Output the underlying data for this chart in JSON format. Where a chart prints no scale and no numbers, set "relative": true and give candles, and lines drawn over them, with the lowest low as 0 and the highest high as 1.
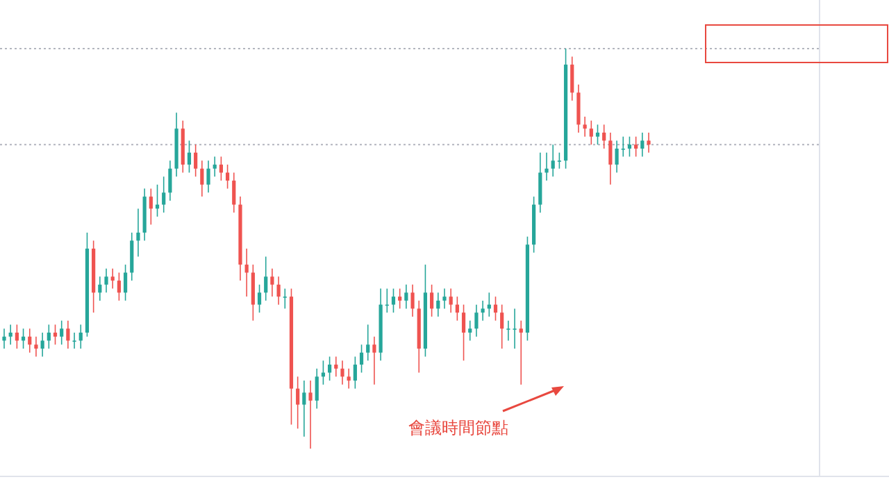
{
  "chart_data": {
    "type": "candlestick",
    "relative": true,
    "grid": false,
    "categories": [
      null,
      null,
      null,
      null,
      null,
      null,
      null,
      null,
      null,
      null,
      null,
      null,
      null,
      null,
      null,
      null,
      null,
      null,
      null,
      null,
      null,
      null,
      null,
      null,
      null,
      null,
      null,
      null,
      null,
      null,
      null,
      null,
      null,
      null,
      null,
      null,
      null,
      null,
      null,
      null,
      null,
      null,
      null,
      null,
      null,
      null,
      null,
      null,
      null,
      null,
      null,
      null,
      null,
      null,
      null,
      null,
      null,
      null,
      null,
      null,
      null,
      null,
      null,
      null,
      null,
      null,
      null,
      null,
      null,
      null,
      null,
      null,
      null,
      null,
      null,
      null,
      null,
      null,
      null,
      null,
      null,
      null,
      null,
      null,
      null,
      null,
      null,
      null,
      null,
      null,
      null,
      null,
      null,
      null,
      null,
      null,
      null,
      null,
      null,
      null,
      null,
      null
    ],
    "series": [
      {
        "colors": [
          "#26a69a",
          "#26a69a",
          "#ef5350",
          "#26a69a",
          "#ef5350",
          "#ef5350",
          "#26a69a",
          "#26a69a",
          "#ef5350",
          "#26a69a",
          "#ef5350",
          "#26a69a",
          "#26a69a",
          "#26a69a",
          "#ef5350",
          "#26a69a",
          "#26a69a",
          "#ef5350",
          "#ef5350",
          "#26a69a",
          "#26a69a",
          "#26a69a",
          "#26a69a",
          "#ef5350",
          "#26a69a",
          "#26a69a",
          "#26a69a",
          "#26a69a",
          "#ef5350",
          "#26a69a",
          "#ef5350",
          "#ef5350",
          "#26a69a",
          "#26a69a",
          "#ef5350",
          "#ef5350",
          "#ef5350",
          "#ef5350",
          "#ef5350",
          "#ef5350",
          "#26a69a",
          "#26a69a",
          "#ef5350",
          "#ef5350",
          "#26a69a",
          "#ef5350",
          "#ef5350",
          "#26a69a",
          "#ef5350",
          "#26a69a",
          "#26a69a",
          "#26a69a",
          "#ef5350",
          "#ef5350",
          "#ef5350",
          "#26a69a",
          "#26a69a",
          "#26a69a",
          "#ef5350",
          "#26a69a",
          "#26a69a",
          "#26a69a",
          "#ef5350",
          "#26a69a",
          "#ef5350",
          "#ef5350",
          "#26a69a",
          "#ef5350",
          "#26a69a",
          "#26a69a",
          "#ef5350",
          "#ef5350",
          "#ef5350",
          "#26a69a",
          "#26a69a",
          "#26a69a",
          "#26a69a",
          "#ef5350",
          "#ef5350",
          "#26a69a",
          "#26a69a",
          "#ef5350",
          "#26a69a",
          "#26a69a",
          "#26a69a",
          "#26a69a",
          "#26a69a",
          "#26a69a",
          "#26a69a",
          "#ef5350",
          "#ef5350",
          "#ef5350",
          "#ef5350",
          "#26a69a",
          "#ef5350",
          "#ef5350",
          "#26a69a",
          "#26a69a",
          "#26a69a",
          "#ef5350",
          "#26a69a",
          "#ef5350"
        ],
        "ohlc": [
          [
            0.27,
            0.3,
            0.25,
            0.28
          ],
          [
            0.28,
            0.31,
            0.26,
            0.29
          ],
          [
            0.29,
            0.31,
            0.25,
            0.27
          ],
          [
            0.27,
            0.3,
            0.25,
            0.28
          ],
          [
            0.28,
            0.3,
            0.24,
            0.26
          ],
          [
            0.26,
            0.28,
            0.23,
            0.25
          ],
          [
            0.25,
            0.29,
            0.23,
            0.27
          ],
          [
            0.27,
            0.31,
            0.25,
            0.29
          ],
          [
            0.29,
            0.31,
            0.26,
            0.28
          ],
          [
            0.28,
            0.32,
            0.26,
            0.3
          ],
          [
            0.3,
            0.32,
            0.25,
            0.27
          ],
          [
            0.27,
            0.29,
            0.25,
            0.27
          ],
          [
            0.27,
            0.31,
            0.25,
            0.29
          ],
          [
            0.29,
            0.54,
            0.28,
            0.5
          ],
          [
            0.5,
            0.52,
            0.34,
            0.39
          ],
          [
            0.39,
            0.43,
            0.37,
            0.41
          ],
          [
            0.41,
            0.45,
            0.39,
            0.43
          ],
          [
            0.43,
            0.45,
            0.4,
            0.42
          ],
          [
            0.42,
            0.44,
            0.37,
            0.39
          ],
          [
            0.39,
            0.46,
            0.37,
            0.44
          ],
          [
            0.44,
            0.54,
            0.42,
            0.52
          ],
          [
            0.52,
            0.6,
            0.48,
            0.54
          ],
          [
            0.54,
            0.65,
            0.52,
            0.63
          ],
          [
            0.63,
            0.65,
            0.56,
            0.6
          ],
          [
            0.6,
            0.66,
            0.58,
            0.61
          ],
          [
            0.61,
            0.68,
            0.59,
            0.64
          ],
          [
            0.64,
            0.72,
            0.62,
            0.7
          ],
          [
            0.7,
            0.84,
            0.68,
            0.8
          ],
          [
            0.8,
            0.82,
            0.69,
            0.71
          ],
          [
            0.71,
            0.77,
            0.69,
            0.74
          ],
          [
            0.74,
            0.76,
            0.68,
            0.7
          ],
          [
            0.7,
            0.72,
            0.63,
            0.66
          ],
          [
            0.66,
            0.72,
            0.64,
            0.7
          ],
          [
            0.7,
            0.73,
            0.68,
            0.71
          ],
          [
            0.71,
            0.73,
            0.67,
            0.69
          ],
          [
            0.69,
            0.71,
            0.65,
            0.67
          ],
          [
            0.67,
            0.69,
            0.59,
            0.61
          ],
          [
            0.61,
            0.63,
            0.42,
            0.46
          ],
          [
            0.46,
            0.5,
            0.38,
            0.44
          ],
          [
            0.44,
            0.46,
            0.32,
            0.36
          ],
          [
            0.36,
            0.41,
            0.34,
            0.39
          ],
          [
            0.39,
            0.48,
            0.37,
            0.43
          ],
          [
            0.43,
            0.45,
            0.38,
            0.41
          ],
          [
            0.41,
            0.43,
            0.36,
            0.38
          ],
          [
            0.38,
            0.4,
            0.35,
            0.38
          ],
          [
            0.38,
            0.4,
            0.06,
            0.15
          ],
          [
            0.15,
            0.18,
            0.05,
            0.11
          ],
          [
            0.11,
            0.17,
            0.03,
            0.14
          ],
          [
            0.14,
            0.17,
            0,
            0.12
          ],
          [
            0.12,
            0.2,
            0.1,
            0.18
          ],
          [
            0.18,
            0.22,
            0.16,
            0.19
          ],
          [
            0.19,
            0.23,
            0.17,
            0.21
          ],
          [
            0.21,
            0.23,
            0.18,
            0.2
          ],
          [
            0.2,
            0.22,
            0.16,
            0.18
          ],
          [
            0.18,
            0.2,
            0.15,
            0.17
          ],
          [
            0.17,
            0.23,
            0.15,
            0.21
          ],
          [
            0.21,
            0.26,
            0.19,
            0.24
          ],
          [
            0.24,
            0.31,
            0.22,
            0.26
          ],
          [
            0.26,
            0.28,
            0.16,
            0.24
          ],
          [
            0.24,
            0.4,
            0.22,
            0.36
          ],
          [
            0.36,
            0.4,
            0.34,
            0.36
          ],
          [
            0.36,
            0.4,
            0.34,
            0.38
          ],
          [
            0.38,
            0.4,
            0.35,
            0.37
          ],
          [
            0.37,
            0.41,
            0.35,
            0.39
          ],
          [
            0.39,
            0.41,
            0.33,
            0.35
          ],
          [
            0.35,
            0.37,
            0.19,
            0.25
          ],
          [
            0.25,
            0.46,
            0.23,
            0.39
          ],
          [
            0.39,
            0.41,
            0.33,
            0.35
          ],
          [
            0.35,
            0.39,
            0.33,
            0.37
          ],
          [
            0.37,
            0.4,
            0.35,
            0.38
          ],
          [
            0.38,
            0.4,
            0.34,
            0.36
          ],
          [
            0.36,
            0.38,
            0.32,
            0.34
          ],
          [
            0.34,
            0.36,
            0.22,
            0.29
          ],
          [
            0.29,
            0.32,
            0.27,
            0.3
          ],
          [
            0.3,
            0.36,
            0.28,
            0.34
          ],
          [
            0.34,
            0.37,
            0.32,
            0.35
          ],
          [
            0.35,
            0.39,
            0.33,
            0.36
          ],
          [
            0.36,
            0.38,
            0.32,
            0.34
          ],
          [
            0.34,
            0.36,
            0.25,
            0.3
          ],
          [
            0.3,
            0.32,
            0.27,
            0.3
          ],
          [
            0.3,
            0.35,
            0.25,
            0.3
          ],
          [
            0.3,
            0.32,
            0.16,
            0.29
          ],
          [
            0.29,
            0.53,
            0.27,
            0.51
          ],
          [
            0.51,
            0.63,
            0.49,
            0.61
          ],
          [
            0.61,
            0.74,
            0.59,
            0.69
          ],
          [
            0.69,
            0.74,
            0.67,
            0.7
          ],
          [
            0.7,
            0.76,
            0.68,
            0.72
          ],
          [
            0.72,
            0.74,
            0.7,
            0.72
          ],
          [
            0.72,
            1,
            0.7,
            0.96
          ],
          [
            0.96,
            0.98,
            0.87,
            0.89
          ],
          [
            0.89,
            0.91,
            0.79,
            0.81
          ],
          [
            0.81,
            0.83,
            0.78,
            0.8
          ],
          [
            0.8,
            0.82,
            0.76,
            0.78
          ],
          [
            0.78,
            0.81,
            0.76,
            0.79
          ],
          [
            0.79,
            0.81,
            0.75,
            0.77
          ],
          [
            0.77,
            0.79,
            0.66,
            0.71
          ],
          [
            0.71,
            0.77,
            0.69,
            0.75
          ],
          [
            0.75,
            0.78,
            0.73,
            0.75
          ],
          [
            0.75,
            0.78,
            0.73,
            0.76
          ],
          [
            0.76,
            0.78,
            0.73,
            0.75
          ],
          [
            0.75,
            0.79,
            0.73,
            0.77
          ],
          [
            0.77,
            0.79,
            0.74,
            0.76
          ]
        ]
      }
    ],
    "ref_lines": [
      {
        "axis": "y",
        "value": 0.76,
        "color": "#b2b5be",
        "line_style": "dotted"
      },
      {
        "axis": "y",
        "value": 1,
        "color": "#b2b5be",
        "line_style": "dotted"
      }
    ],
    "annotations": [
      "會議時間節點"
    ]
  }
}
